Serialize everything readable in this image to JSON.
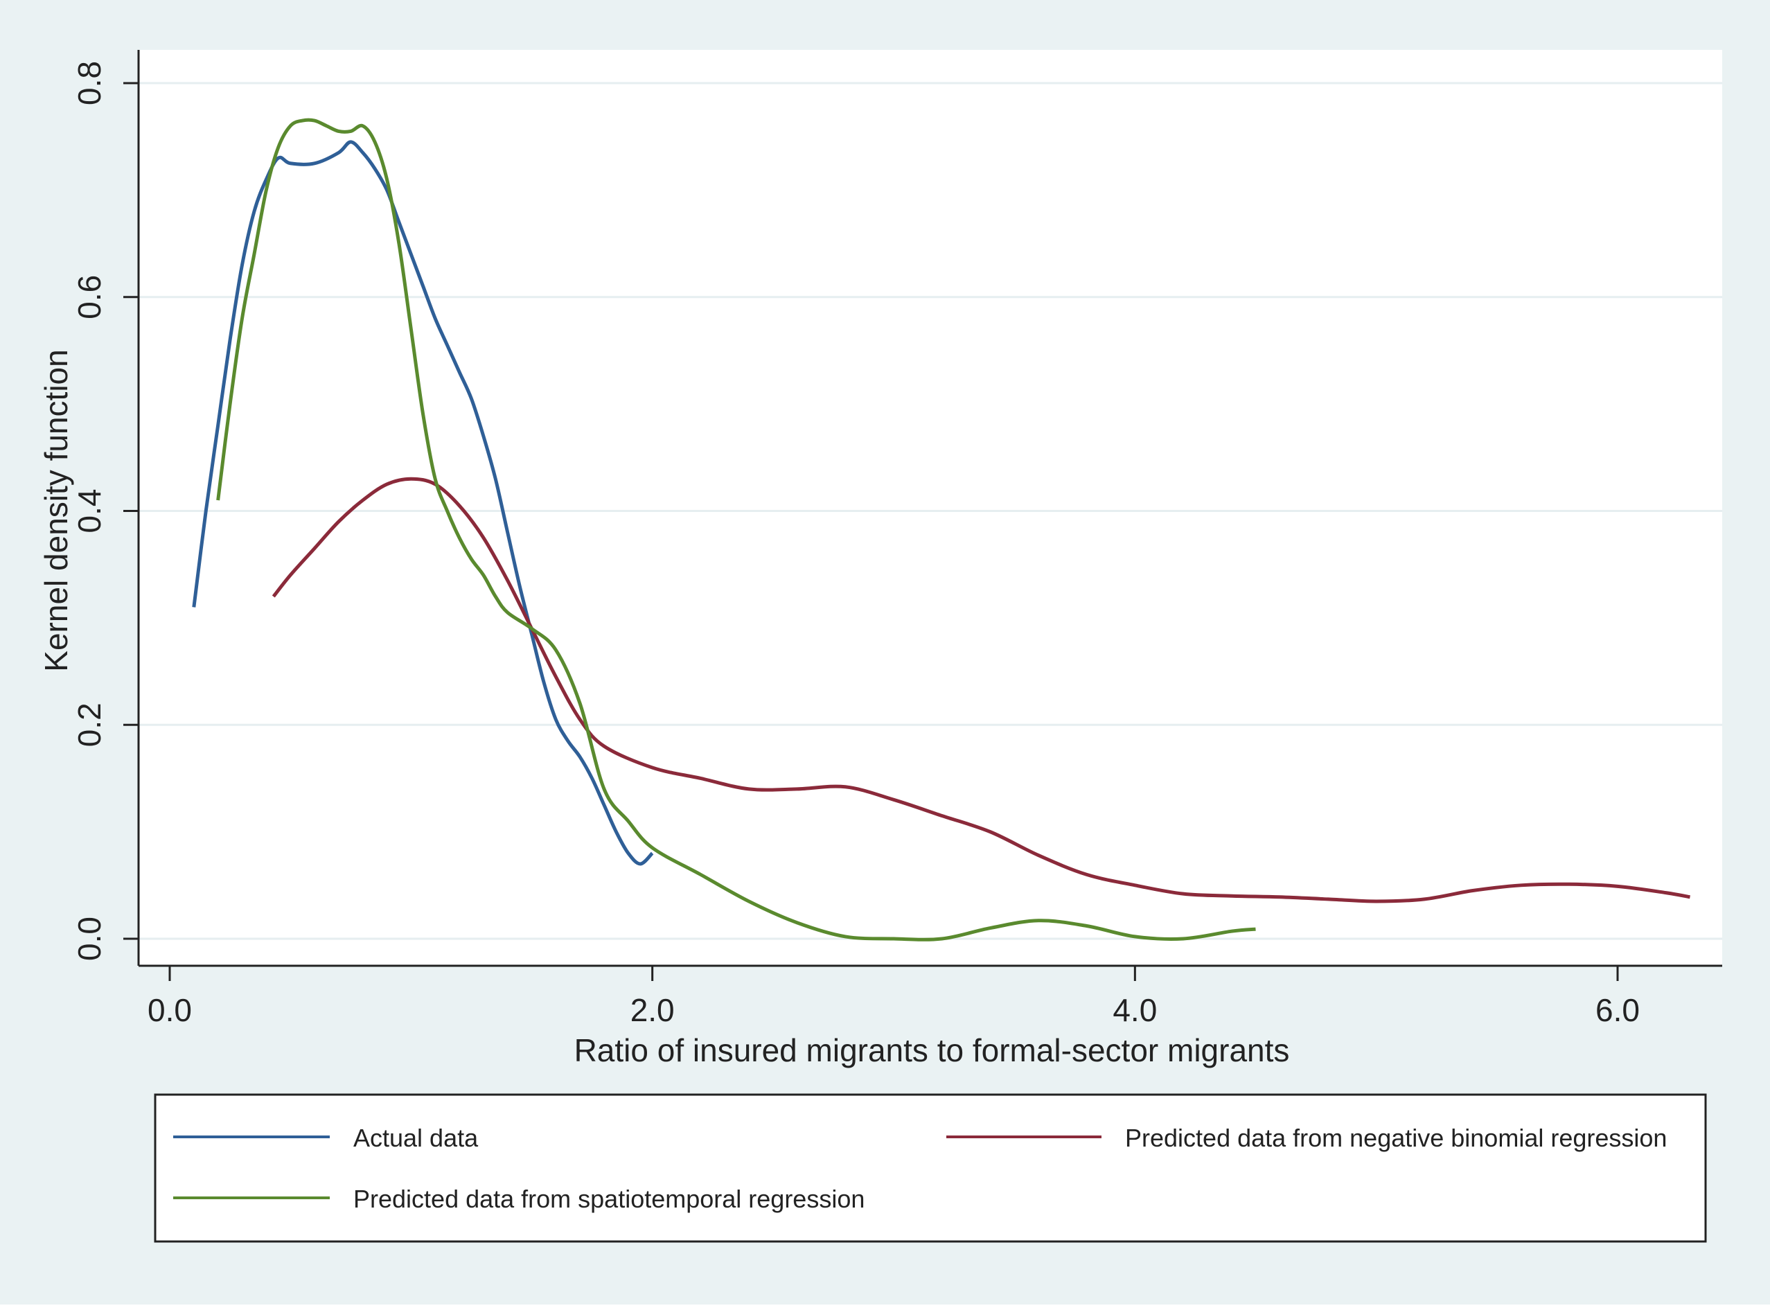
{
  "chart_data": {
    "type": "line",
    "title": "",
    "xlabel": "Ratio of insured migrants to formal-sector migrants",
    "ylabel": "Kernel density function",
    "xlim": [
      0.0,
      6.3
    ],
    "ylim": [
      0.0,
      0.8
    ],
    "x_ticks": [
      0.0,
      2.0,
      4.0,
      6.0
    ],
    "x_tick_labels": [
      "0.0",
      "2.0",
      "4.0",
      "6.0"
    ],
    "y_ticks": [
      0.0,
      0.2,
      0.4,
      0.6,
      0.8
    ],
    "y_tick_labels": [
      "0.0",
      "0.2",
      "0.4",
      "0.6",
      "0.8"
    ],
    "grid": "horizontal",
    "legend_position": "bottom",
    "series": [
      {
        "name": "Actual data",
        "color": "#2f5f97",
        "x": [
          0.1,
          0.15,
          0.2,
          0.25,
          0.3,
          0.35,
          0.4,
          0.45,
          0.5,
          0.6,
          0.7,
          0.75,
          0.8,
          0.85,
          0.9,
          0.95,
          1.0,
          1.05,
          1.1,
          1.15,
          1.2,
          1.25,
          1.3,
          1.35,
          1.4,
          1.45,
          1.5,
          1.55,
          1.6,
          1.65,
          1.7,
          1.75,
          1.8,
          1.85,
          1.9,
          1.95,
          2.0
        ],
        "values": [
          0.31,
          0.4,
          0.48,
          0.56,
          0.63,
          0.68,
          0.71,
          0.73,
          0.725,
          0.725,
          0.735,
          0.745,
          0.735,
          0.72,
          0.7,
          0.67,
          0.64,
          0.61,
          0.58,
          0.555,
          0.53,
          0.505,
          0.47,
          0.43,
          0.38,
          0.33,
          0.285,
          0.24,
          0.205,
          0.185,
          0.17,
          0.15,
          0.125,
          0.1,
          0.08,
          0.07,
          0.08
        ]
      },
      {
        "name": "Predicted data from negative binomial regression",
        "color": "#8b2a3a",
        "x": [
          0.43,
          0.5,
          0.6,
          0.7,
          0.8,
          0.9,
          1.0,
          1.1,
          1.2,
          1.3,
          1.4,
          1.5,
          1.6,
          1.7,
          1.8,
          2.0,
          2.2,
          2.4,
          2.6,
          2.8,
          3.0,
          3.2,
          3.4,
          3.6,
          3.8,
          4.0,
          4.2,
          4.4,
          4.6,
          4.8,
          5.0,
          5.2,
          5.4,
          5.6,
          5.8,
          6.0,
          6.2,
          6.3
        ],
        "values": [
          0.32,
          0.34,
          0.365,
          0.39,
          0.41,
          0.425,
          0.43,
          0.425,
          0.405,
          0.375,
          0.335,
          0.29,
          0.245,
          0.205,
          0.18,
          0.16,
          0.15,
          0.14,
          0.14,
          0.142,
          0.13,
          0.115,
          0.1,
          0.078,
          0.06,
          0.05,
          0.042,
          0.04,
          0.039,
          0.037,
          0.035,
          0.037,
          0.045,
          0.05,
          0.051,
          0.049,
          0.043,
          0.039
        ]
      },
      {
        "name": "Predicted data from spatiotemporal regression",
        "color": "#5a8a2e",
        "x": [
          0.2,
          0.25,
          0.3,
          0.35,
          0.4,
          0.45,
          0.5,
          0.55,
          0.6,
          0.65,
          0.7,
          0.75,
          0.8,
          0.85,
          0.9,
          0.95,
          1.0,
          1.05,
          1.1,
          1.15,
          1.2,
          1.25,
          1.3,
          1.35,
          1.4,
          1.5,
          1.6,
          1.7,
          1.8,
          1.9,
          2.0,
          2.2,
          2.4,
          2.6,
          2.8,
          3.0,
          3.2,
          3.4,
          3.6,
          3.8,
          4.0,
          4.2,
          4.4,
          4.5
        ],
        "values": [
          0.41,
          0.5,
          0.58,
          0.64,
          0.7,
          0.74,
          0.76,
          0.765,
          0.765,
          0.76,
          0.755,
          0.755,
          0.76,
          0.745,
          0.71,
          0.65,
          0.57,
          0.49,
          0.43,
          0.4,
          0.375,
          0.355,
          0.34,
          0.32,
          0.305,
          0.29,
          0.27,
          0.22,
          0.14,
          0.11,
          0.085,
          0.06,
          0.035,
          0.015,
          0.002,
          0.0,
          0.0,
          0.01,
          0.017,
          0.012,
          0.002,
          0.0,
          0.007,
          0.009
        ]
      }
    ]
  }
}
